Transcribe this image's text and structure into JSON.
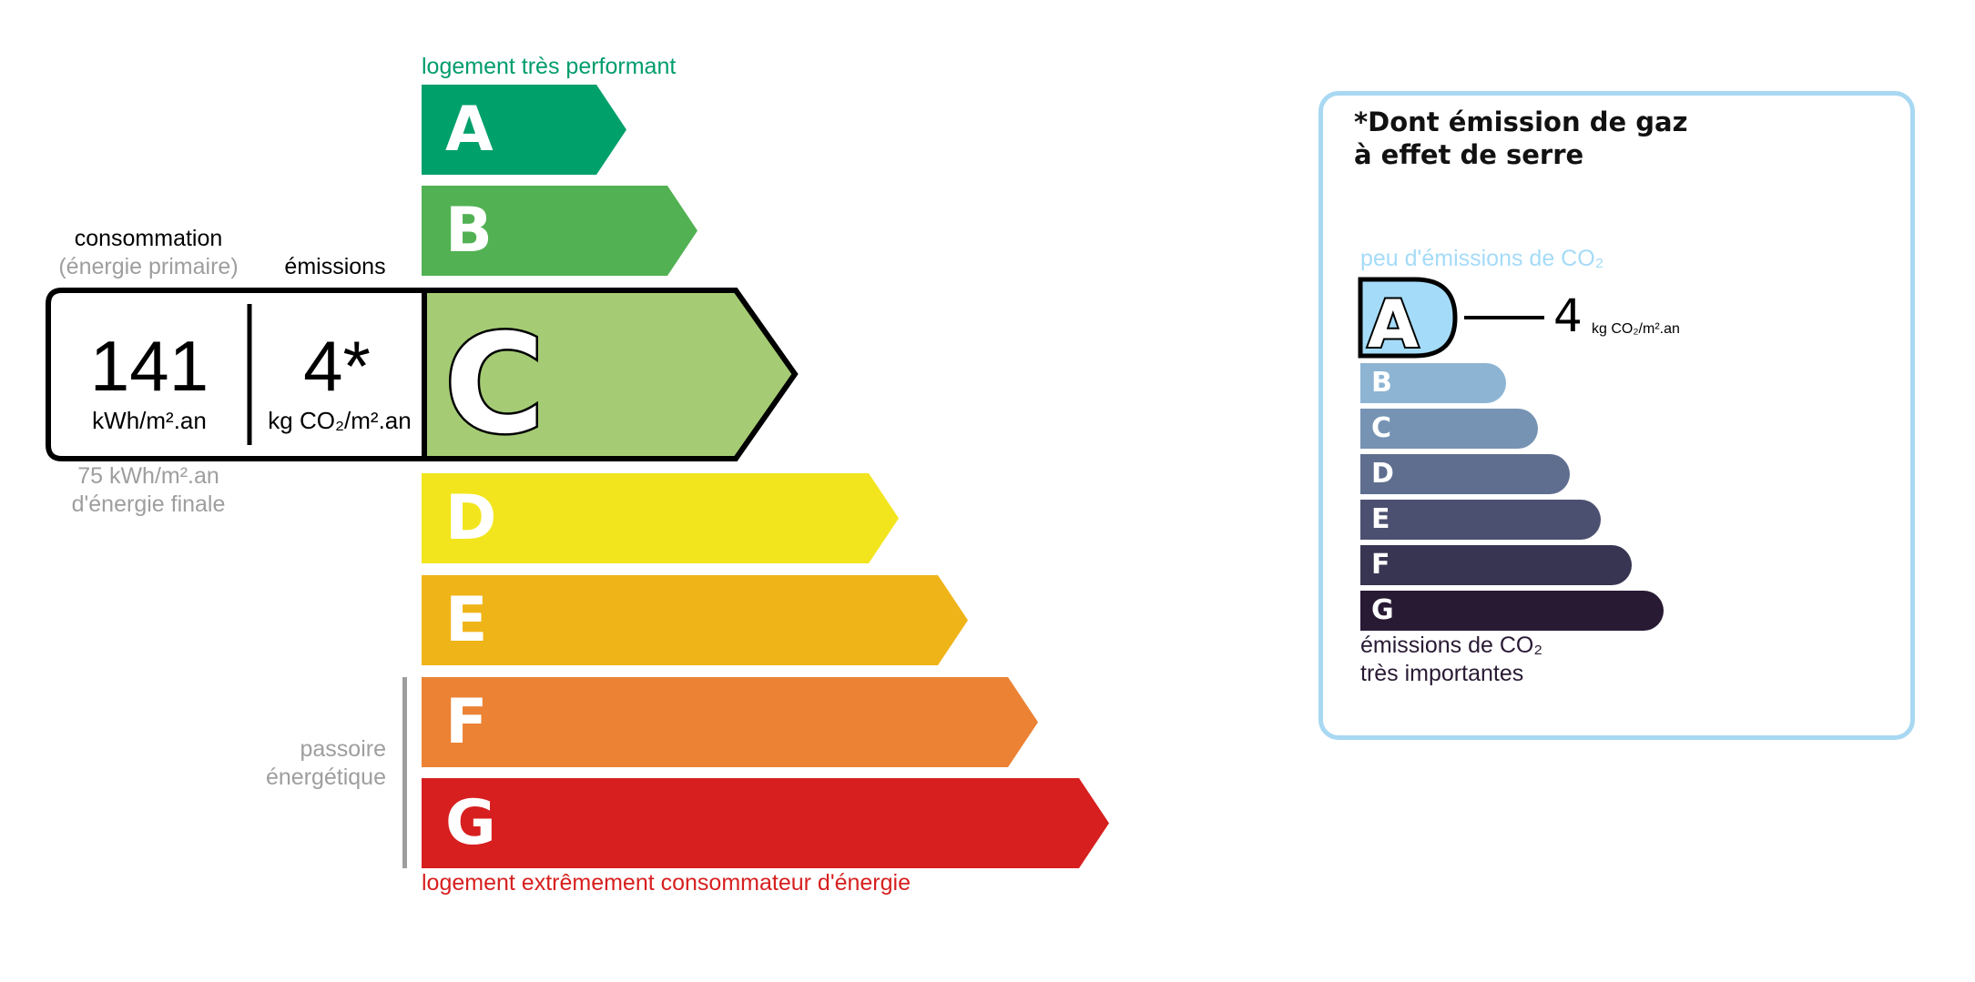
{
  "energy": {
    "top_label": "logement très performant",
    "bottom_label": "logement extrêmement consommateur d'énergie",
    "top_color": "#009c6d",
    "bottom_color": "#d71f1f",
    "classes": [
      {
        "letter": "A",
        "color": "#00a06b"
      },
      {
        "letter": "B",
        "color": "#52b153"
      },
      {
        "letter": "C",
        "color": "#a5cc74",
        "selected": true
      },
      {
        "letter": "D",
        "color": "#f2e51d"
      },
      {
        "letter": "E",
        "color": "#efb418"
      },
      {
        "letter": "F",
        "color": "#eb8234"
      },
      {
        "letter": "G",
        "color": "#d71f1f"
      }
    ],
    "passoire_line1": "passoire",
    "passoire_line2": "énergétique"
  },
  "summary": {
    "consumption_title": "consommation",
    "consumption_subtitle": "(énergie primaire)",
    "emissions_title": "émissions",
    "consumption_value": "141",
    "consumption_unit": "kWh/m².an",
    "emissions_value": "4*",
    "emissions_unit": "kg CO₂/m².an",
    "final_energy_line1": "75 kWh/m².an",
    "final_energy_line2": "d'énergie finale"
  },
  "ghg": {
    "title_line1": "*Dont émission de gaz",
    "title_line2": "à effet de serre",
    "top_label": "peu d'émissions de CO₂",
    "bottom_line1": "émissions de CO₂",
    "bottom_line2": "très importantes",
    "value": "4",
    "unit": "kg CO₂/m².an",
    "selected": "A",
    "border_color": "#a8d8f2",
    "classes": [
      {
        "letter": "A",
        "color": "#a4dbf8"
      },
      {
        "letter": "B",
        "color": "#8db4d3"
      },
      {
        "letter": "C",
        "color": "#7693b4"
      },
      {
        "letter": "D",
        "color": "#5f6e8f"
      },
      {
        "letter": "E",
        "color": "#4c5070"
      },
      {
        "letter": "F",
        "color": "#383552"
      },
      {
        "letter": "G",
        "color": "#291a34"
      }
    ]
  }
}
